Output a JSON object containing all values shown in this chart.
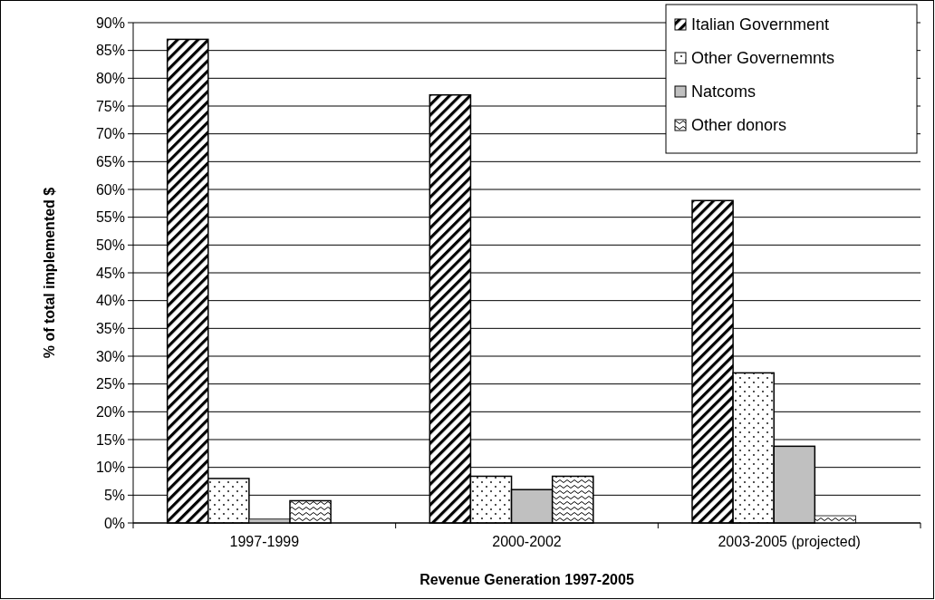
{
  "chart_data": {
    "type": "bar",
    "xlabel": "Revenue Generation 1997-2005",
    "ylabel": "% of total implemented $",
    "categories": [
      "1997-1999",
      "2000-2002",
      "2003-2005 (projected)"
    ],
    "series": [
      {
        "name": "Italian Government",
        "color": "#000000",
        "values": [
          87,
          77,
          58
        ]
      },
      {
        "name": "Other Governemnts",
        "color": "#000000",
        "values": [
          8,
          8.4,
          27
        ]
      },
      {
        "name": "Natcoms",
        "color": "#c0c0c0",
        "values": [
          0.7,
          6,
          13.8
        ]
      },
      {
        "name": "Other donors",
        "color": "#000000",
        "values": [
          4,
          8.4,
          1.3
        ]
      }
    ],
    "ylim": [
      0,
      90
    ],
    "yticks": [
      {
        "value": 0,
        "label": "0%"
      },
      {
        "value": 5,
        "label": "5%"
      },
      {
        "value": 10,
        "label": "10%"
      },
      {
        "value": 15,
        "label": "15%"
      },
      {
        "value": 20,
        "label": "20%"
      },
      {
        "value": 25,
        "label": "25%"
      },
      {
        "value": 30,
        "label": "30%"
      },
      {
        "value": 35,
        "label": "35%"
      },
      {
        "value": 40,
        "label": "40%"
      },
      {
        "value": 45,
        "label": "45%"
      },
      {
        "value": 50,
        "label": "50%"
      },
      {
        "value": 55,
        "label": "55%"
      },
      {
        "value": 60,
        "label": "60%"
      },
      {
        "value": 65,
        "label": "65%"
      },
      {
        "value": 70,
        "label": "70%"
      },
      {
        "value": 75,
        "label": "75%"
      },
      {
        "value": 80,
        "label": "80%"
      },
      {
        "value": 85,
        "label": "85%"
      },
      {
        "value": 90,
        "label": "90%"
      }
    ],
    "grid": "y",
    "legend": "top right"
  }
}
